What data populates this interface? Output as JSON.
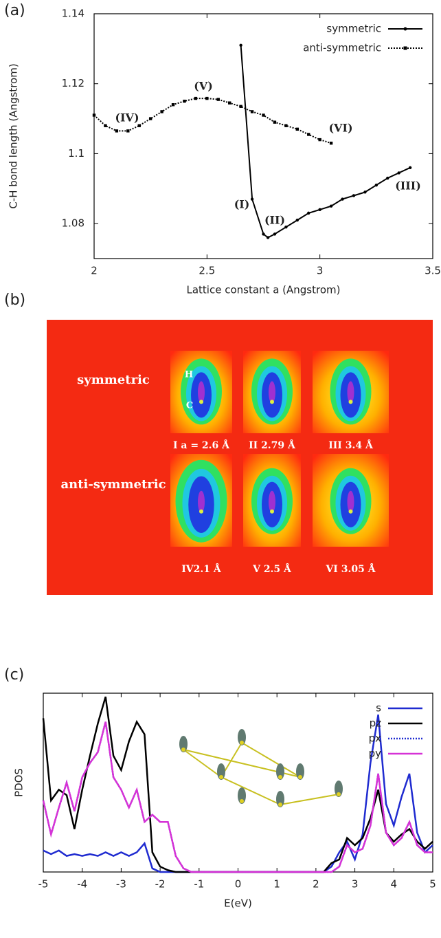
{
  "panel_labels": [
    "(a)",
    "(b)",
    "(c)"
  ],
  "chart_data": [
    {
      "type": "line",
      "xlabel": "Lattice constant a (Angstrom)",
      "ylabel": "C-H bond length (Angstrom)",
      "xlim": [
        2,
        3.5
      ],
      "xticks": [
        2,
        2.5,
        3,
        3.5
      ],
      "ylim": [
        1.07,
        1.14
      ],
      "yticks": [
        1.08,
        1.1,
        1.12,
        1.14
      ],
      "legend": "upper right",
      "series": [
        {
          "name": "symmetric",
          "color": "#000000",
          "line_style": "solid",
          "marker": "circle",
          "x": [
            2.65,
            2.7,
            2.75,
            2.77,
            2.8,
            2.85,
            2.9,
            2.95,
            3.0,
            3.05,
            3.1,
            3.15,
            3.2,
            3.25,
            3.3,
            3.35,
            3.4
          ],
          "values": [
            1.131,
            1.087,
            1.077,
            1.076,
            1.077,
            1.079,
            1.081,
            1.083,
            1.084,
            1.085,
            1.087,
            1.088,
            1.089,
            1.091,
            1.093,
            1.0945,
            1.096
          ]
        },
        {
          "name": "anti-symmetric",
          "color": "#000000",
          "line_style": "dotted",
          "marker": "square",
          "x": [
            2.0,
            2.05,
            2.1,
            2.15,
            2.2,
            2.25,
            2.3,
            2.35,
            2.4,
            2.45,
            2.5,
            2.55,
            2.6,
            2.65,
            2.7,
            2.75,
            2.8,
            2.85,
            2.9,
            2.95,
            3.0,
            3.05
          ],
          "values": [
            1.111,
            1.108,
            1.1065,
            1.1065,
            1.108,
            1.11,
            1.112,
            1.114,
            1.115,
            1.1158,
            1.1158,
            1.1155,
            1.1145,
            1.1135,
            1.112,
            1.111,
            1.109,
            1.108,
            1.107,
            1.1055,
            1.104,
            1.103
          ]
        }
      ],
      "annotations": [
        {
          "text": "(I)",
          "color": "#c62a22"
        },
        {
          "text": "(II)",
          "color": "#c62a22"
        },
        {
          "text": "(III)",
          "color": "#c62a22"
        },
        {
          "text": "(IV)",
          "color": "#2a2a8a"
        },
        {
          "text": "(V)",
          "color": "#2a2a8a"
        },
        {
          "text": "(VI)",
          "color": "#2a2a8a"
        }
      ]
    },
    {
      "type": "line",
      "xlabel": "E(eV)",
      "ylabel": "PDOS",
      "xlim": [
        -5,
        5
      ],
      "xticks": [
        -5,
        -4,
        -3,
        -2,
        -1,
        0,
        1,
        2,
        3,
        4,
        5
      ],
      "ylim": [
        0,
        10
      ],
      "legend": "upper right",
      "x": [
        -5,
        -4.8,
        -4.6,
        -4.4,
        -4.2,
        -4,
        -3.8,
        -3.6,
        -3.4,
        -3.2,
        -3,
        -2.8,
        -2.6,
        -2.4,
        -2.2,
        -2,
        -1.8,
        -1.6,
        -1.4,
        -1.2,
        -1,
        -0.8,
        -0.6,
        -0.4,
        -0.2,
        0,
        0.2,
        0.4,
        0.6,
        0.8,
        1,
        1.2,
        1.4,
        1.6,
        1.8,
        2,
        2.2,
        2.4,
        2.6,
        2.8,
        3,
        3.2,
        3.4,
        3.6,
        3.8,
        4,
        4.2,
        4.4,
        4.6,
        4.8,
        5
      ],
      "series": [
        {
          "name": "s",
          "color": "#1f2bd0",
          "line_style": "solid",
          "values": [
            1.2,
            1.0,
            1.2,
            0.9,
            1.0,
            0.9,
            1.0,
            0.9,
            1.1,
            0.9,
            1.1,
            0.9,
            1.1,
            1.6,
            0.2,
            0,
            0,
            0,
            0,
            0,
            0,
            0,
            0,
            0,
            0,
            0,
            0,
            0,
            0,
            0,
            0,
            0,
            0,
            0,
            0,
            0,
            0,
            0.3,
            1.1,
            1.7,
            0.7,
            2.1,
            6.1,
            8.8,
            3.8,
            2.6,
            4.2,
            5.5,
            2.2,
            1.1,
            1.5
          ]
        },
        {
          "name": "pz",
          "color": "#000000",
          "line_style": "solid",
          "values": [
            8.6,
            4.0,
            4.6,
            4.3,
            2.4,
            4.6,
            6.5,
            8.3,
            9.8,
            6.5,
            5.7,
            7.3,
            8.4,
            7.7,
            1.1,
            0.3,
            0.1,
            0,
            0,
            0,
            0,
            0,
            0,
            0,
            0,
            0,
            0,
            0,
            0,
            0,
            0,
            0,
            0,
            0,
            0,
            0,
            0,
            0.5,
            0.7,
            1.9,
            1.5,
            1.9,
            3.0,
            4.6,
            2.2,
            1.7,
            2.1,
            2.4,
            1.7,
            1.3,
            1.7
          ]
        },
        {
          "name": "px",
          "color": "#1f2bd0",
          "line_style": "dotted",
          "values": [
            4.0,
            2.1,
            3.6,
            5.0,
            3.4,
            5.3,
            6.1,
            6.7,
            8.4,
            5.3,
            4.6,
            3.6,
            4.6,
            2.8,
            3.2,
            2.8,
            2.8,
            0.9,
            0.2,
            0,
            0,
            0,
            0,
            0,
            0,
            0,
            0,
            0,
            0,
            0,
            0,
            0,
            0,
            0,
            0,
            0,
            0,
            0,
            0.3,
            1.5,
            1.1,
            1.3,
            2.6,
            5.5,
            2.2,
            1.5,
            1.9,
            2.8,
            1.5,
            1.1,
            1.1
          ]
        },
        {
          "name": "py",
          "color": "#d632d6",
          "line_style": "solid",
          "values": [
            4.0,
            2.1,
            3.6,
            5.0,
            3.4,
            5.3,
            6.1,
            6.7,
            8.4,
            5.3,
            4.6,
            3.6,
            4.6,
            2.8,
            3.2,
            2.8,
            2.8,
            0.9,
            0.2,
            0,
            0,
            0,
            0,
            0,
            0,
            0,
            0,
            0,
            0,
            0,
            0,
            0,
            0,
            0,
            0,
            0,
            0,
            0,
            0.3,
            1.5,
            1.1,
            1.3,
            2.6,
            5.5,
            2.2,
            1.5,
            1.9,
            2.8,
            1.5,
            1.1,
            1.1
          ]
        }
      ]
    }
  ],
  "heatmap_panel": {
    "rows": [
      "symmetric",
      "anti-symmetric"
    ],
    "atom_labels": [
      "H",
      "C"
    ],
    "captions": [
      "I  a = 2.6 Å",
      "II 2.79 Å",
      "III  3.4 Å",
      "IV2.1 Å",
      "V  2.5 Å",
      "VI 3.05 Å"
    ]
  }
}
